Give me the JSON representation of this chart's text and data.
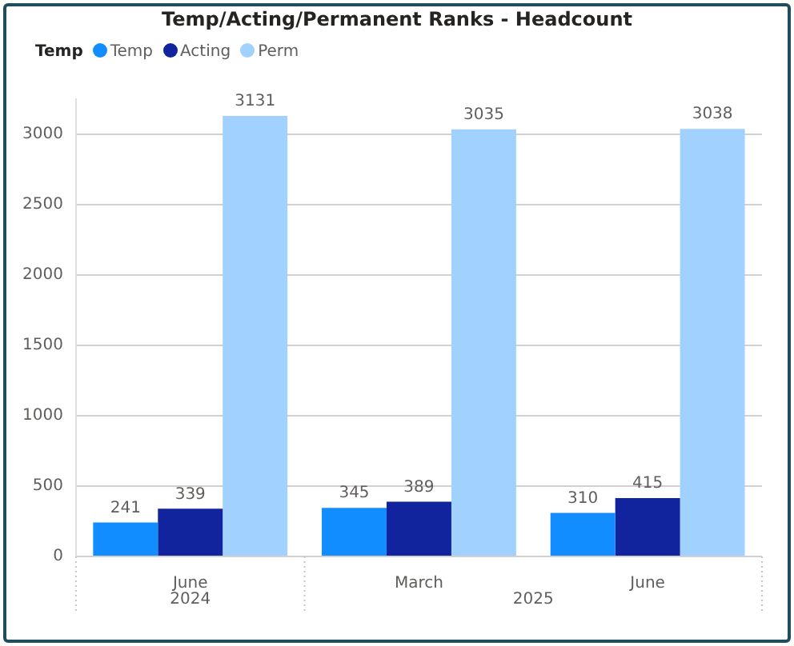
{
  "chart_data": {
    "type": "bar",
    "title": "Temp/Acting/Permanent Ranks - Headcount",
    "legend_title": "Temp",
    "legend": "top left",
    "categories": [
      "June",
      "March",
      "June"
    ],
    "series": [
      {
        "name": "Temp",
        "color": "#118dff",
        "values": [
          241,
          345,
          310
        ]
      },
      {
        "name": "Acting",
        "color": "#12239e",
        "values": [
          339,
          389,
          415
        ]
      },
      {
        "name": "Perm",
        "color": "#a0d1ff",
        "values": [
          3131,
          3035,
          3038
        ]
      }
    ],
    "ylim": [
      0,
      3250
    ],
    "yticks": [
      0,
      500,
      1000,
      1500,
      2000,
      2500,
      3000
    ],
    "grid": "y",
    "data_labels": true,
    "annotations": [
      "2024",
      "2025"
    ]
  }
}
